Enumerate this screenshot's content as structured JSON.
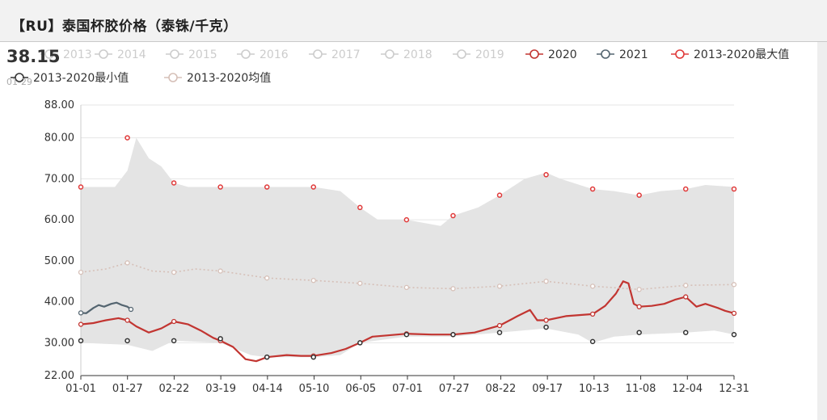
{
  "header": {
    "title": "【RU】泰国杯胶价格（泰铢/千克）"
  },
  "latest": {
    "value": "38.15",
    "date": "01-29"
  },
  "colors": {
    "s2020": "#c23531",
    "s2021": "#546570",
    "smax": "#e03a3a",
    "smin": "#333333",
    "savg": "#d6c0b8",
    "band": "#e4e4e4",
    "inactive": "#cccccc"
  },
  "chart_data": {
    "type": "line",
    "title": "【RU】泰国杯胶价格（泰铢/千克）",
    "xlabel": "",
    "ylabel": "",
    "x_ticks": [
      "01-01",
      "01-27",
      "02-22",
      "03-19",
      "04-14",
      "05-10",
      "06-05",
      "07-01",
      "07-27",
      "08-22",
      "09-17",
      "10-13",
      "11-08",
      "12-04",
      "12-31"
    ],
    "y_ticks": [
      "22.00",
      "30.00",
      "40.00",
      "50.00",
      "60.00",
      "70.00",
      "80.00",
      "88.00"
    ],
    "ylim": [
      22,
      88
    ],
    "grid": true,
    "legend_position": "top",
    "legend": [
      {
        "label": "2013",
        "active": false
      },
      {
        "label": "2014",
        "active": false
      },
      {
        "label": "2015",
        "active": false
      },
      {
        "label": "2016",
        "active": false
      },
      {
        "label": "2017",
        "active": false
      },
      {
        "label": "2018",
        "active": false
      },
      {
        "label": "2019",
        "active": false
      },
      {
        "label": "2020",
        "active": true
      },
      {
        "label": "2021",
        "active": true
      },
      {
        "label": "2013-2020最大值",
        "active": true
      },
      {
        "label": "2013-2020最小值",
        "active": true
      },
      {
        "label": "2013-2020均值",
        "active": true
      }
    ],
    "band_upper": [
      [
        "01-01",
        68
      ],
      [
        "01-20",
        68
      ],
      [
        "01-27",
        72
      ],
      [
        "02-01",
        80
      ],
      [
        "02-08",
        75
      ],
      [
        "02-15",
        73
      ],
      [
        "02-22",
        69
      ],
      [
        "03-01",
        68
      ],
      [
        "04-14",
        68
      ],
      [
        "05-10",
        68
      ],
      [
        "05-25",
        67
      ],
      [
        "06-05",
        63
      ],
      [
        "06-15",
        60
      ],
      [
        "07-01",
        60
      ],
      [
        "07-20",
        58.5
      ],
      [
        "07-27",
        61
      ],
      [
        "08-10",
        63
      ],
      [
        "08-22",
        66
      ],
      [
        "09-05",
        70
      ],
      [
        "09-17",
        71.5
      ],
      [
        "09-25",
        70
      ],
      [
        "10-13",
        67.5
      ],
      [
        "10-25",
        67
      ],
      [
        "11-08",
        66
      ],
      [
        "11-20",
        67
      ],
      [
        "12-04",
        67.5
      ],
      [
        "12-15",
        68.5
      ],
      [
        "12-31",
        68
      ]
    ],
    "band_lower": [
      [
        "01-01",
        30
      ],
      [
        "01-27",
        29.5
      ],
      [
        "02-10",
        28
      ],
      [
        "02-22",
        30.5
      ],
      [
        "03-19",
        30
      ],
      [
        "04-05",
        27
      ],
      [
        "04-14",
        26.5
      ],
      [
        "05-10",
        26.5
      ],
      [
        "05-25",
        27
      ],
      [
        "06-05",
        30
      ],
      [
        "07-01",
        31.5
      ],
      [
        "07-27",
        31.5
      ],
      [
        "08-22",
        32.5
      ],
      [
        "09-17",
        33.5
      ],
      [
        "10-05",
        32
      ],
      [
        "10-13",
        30
      ],
      [
        "10-25",
        31.5
      ],
      [
        "11-08",
        32
      ],
      [
        "12-04",
        32.5
      ],
      [
        "12-20",
        33
      ],
      [
        "12-31",
        32
      ]
    ],
    "series": [
      {
        "name": "2020",
        "color_key": "s2020",
        "points": [
          [
            "01-01",
            34.5
          ],
          [
            "01-08",
            34.8
          ],
          [
            "01-15",
            35.5
          ],
          [
            "01-22",
            36
          ],
          [
            "01-27",
            35.5
          ],
          [
            "02-01",
            34
          ],
          [
            "02-08",
            32.5
          ],
          [
            "02-15",
            33.5
          ],
          [
            "02-22",
            35.2
          ],
          [
            "03-01",
            34.5
          ],
          [
            "03-08",
            33
          ],
          [
            "03-15",
            31.2
          ],
          [
            "03-19",
            30.5
          ],
          [
            "03-26",
            29
          ],
          [
            "04-02",
            26
          ],
          [
            "04-08",
            25.5
          ],
          [
            "04-14",
            26.5
          ],
          [
            "04-25",
            27
          ],
          [
            "05-03",
            26.8
          ],
          [
            "05-10",
            26.8
          ],
          [
            "05-20",
            27.5
          ],
          [
            "05-28",
            28.5
          ],
          [
            "06-05",
            30
          ],
          [
            "06-12",
            31.5
          ],
          [
            "06-20",
            31.8
          ],
          [
            "07-01",
            32.2
          ],
          [
            "07-15",
            32
          ],
          [
            "07-27",
            32
          ],
          [
            "08-08",
            32.5
          ],
          [
            "08-22",
            34.2
          ],
          [
            "09-01",
            36.5
          ],
          [
            "09-08",
            38
          ],
          [
            "09-12",
            35.5
          ],
          [
            "09-17",
            35.5
          ],
          [
            "09-28",
            36.5
          ],
          [
            "10-13",
            37
          ],
          [
            "10-20",
            39
          ],
          [
            "10-26",
            42
          ],
          [
            "10-30",
            45
          ],
          [
            "11-02",
            44.5
          ],
          [
            "11-05",
            39.5
          ],
          [
            "11-08",
            38.8
          ],
          [
            "11-15",
            39
          ],
          [
            "11-22",
            39.5
          ],
          [
            "11-28",
            40.5
          ],
          [
            "12-04",
            41.2
          ],
          [
            "12-10",
            38.8
          ],
          [
            "12-15",
            39.5
          ],
          [
            "12-22",
            38.5
          ],
          [
            "12-26",
            37.8
          ],
          [
            "12-31",
            37.2
          ]
        ]
      },
      {
        "name": "2021",
        "color_key": "s2021",
        "points": [
          [
            "01-01",
            37.3
          ],
          [
            "01-04",
            37.2
          ],
          [
            "01-08",
            38.5
          ],
          [
            "01-11",
            39.2
          ],
          [
            "01-14",
            38.8
          ],
          [
            "01-18",
            39.5
          ],
          [
            "01-21",
            39.8
          ],
          [
            "01-24",
            39.2
          ],
          [
            "01-27",
            38.8
          ],
          [
            "01-29",
            38.15
          ]
        ]
      },
      {
        "name": "2013-2020最大值",
        "color_key": "smax",
        "points": [
          [
            "01-01",
            68
          ],
          [
            "01-27",
            80
          ],
          [
            "02-22",
            69
          ],
          [
            "03-19",
            68
          ],
          [
            "04-14",
            68
          ],
          [
            "05-10",
            68
          ],
          [
            "06-05",
            63
          ],
          [
            "07-01",
            60
          ],
          [
            "07-27",
            61
          ],
          [
            "08-22",
            66
          ],
          [
            "09-17",
            71
          ],
          [
            "10-13",
            67.5
          ],
          [
            "11-08",
            66
          ],
          [
            "12-04",
            67.5
          ],
          [
            "12-31",
            67.5
          ]
        ]
      },
      {
        "name": "2013-2020最小值",
        "color_key": "smin",
        "points": [
          [
            "01-01",
            30.5
          ],
          [
            "01-27",
            30.5
          ],
          [
            "02-22",
            30.5
          ],
          [
            "03-19",
            31
          ],
          [
            "04-14",
            26.5
          ],
          [
            "05-10",
            26.5
          ],
          [
            "06-05",
            30
          ],
          [
            "07-01",
            32
          ],
          [
            "07-27",
            32
          ],
          [
            "08-22",
            32.5
          ],
          [
            "09-17",
            33.8
          ],
          [
            "10-13",
            30.3
          ],
          [
            "11-08",
            32.5
          ],
          [
            "12-04",
            32.5
          ],
          [
            "12-31",
            32
          ]
        ]
      },
      {
        "name": "2013-2020均值",
        "color_key": "savg",
        "points": [
          [
            "01-01",
            47.2
          ],
          [
            "01-15",
            48
          ],
          [
            "01-27",
            49.5
          ],
          [
            "02-10",
            47.5
          ],
          [
            "02-22",
            47.2
          ],
          [
            "03-05",
            48
          ],
          [
            "03-19",
            47.5
          ],
          [
            "04-14",
            45.8
          ],
          [
            "05-10",
            45.2
          ],
          [
            "06-05",
            44.5
          ],
          [
            "07-01",
            43.5
          ],
          [
            "07-27",
            43.2
          ],
          [
            "08-22",
            43.8
          ],
          [
            "09-17",
            45
          ],
          [
            "10-13",
            43.8
          ],
          [
            "11-08",
            43
          ],
          [
            "12-04",
            44
          ],
          [
            "12-31",
            44.2
          ]
        ]
      }
    ]
  }
}
